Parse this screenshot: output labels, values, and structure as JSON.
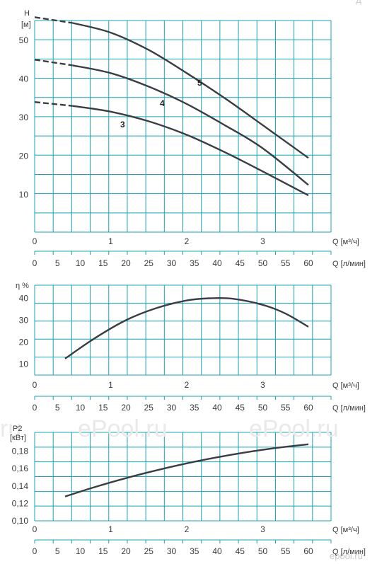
{
  "colors": {
    "grid": "#1aa3b8",
    "curve": "#3a3d42",
    "text": "#3a3a3a",
    "watermark": "#e9e9e9"
  },
  "watermark": {
    "text_left": "ePool.ru",
    "text_right": "ePool.ru",
    "corner": "epool.ru",
    "left_fragment": "ru"
  },
  "axes": {
    "q_m3h_label": "Q [м³/ч]",
    "q_lmin_label": "Q [л/мин]",
    "q_m3h_ticks": [
      "0",
      "1",
      "2",
      "3"
    ],
    "q_lmin_ticks": [
      "0",
      "5",
      "10",
      "15",
      "20",
      "25",
      "30",
      "35",
      "40",
      "45",
      "50",
      "55",
      "60"
    ]
  },
  "chart_data": [
    {
      "type": "line",
      "name": "head",
      "ylabel": "H",
      "yunit": "[м]",
      "xlim": [
        0,
        3.6
      ],
      "ylim": [
        0,
        60
      ],
      "yticks": [
        10,
        20,
        30,
        40,
        50
      ],
      "series": [
        {
          "name": "5",
          "x": [
            0,
            0.5,
            1.0,
            1.5,
            2.0,
            2.5,
            3.0,
            3.6
          ],
          "y": [
            56,
            54.5,
            52,
            47.5,
            41.5,
            35,
            28,
            19.5
          ]
        },
        {
          "name": "4",
          "x": [
            0,
            0.5,
            1.0,
            1.5,
            2.0,
            2.5,
            3.0,
            3.6
          ],
          "y": [
            45,
            43.5,
            41.5,
            38,
            33.5,
            28,
            22,
            12.5
          ]
        },
        {
          "name": "3",
          "x": [
            0,
            0.5,
            1.0,
            1.5,
            2.0,
            2.5,
            3.0,
            3.6
          ],
          "y": [
            34,
            33,
            31.5,
            29,
            25.5,
            21,
            16,
            9.8
          ]
        }
      ]
    },
    {
      "type": "line",
      "name": "efficiency",
      "ylabel": "η %",
      "xlim": [
        0,
        3.6
      ],
      "ylim": [
        5,
        47
      ],
      "yticks": [
        10,
        20,
        30,
        40
      ],
      "series": [
        {
          "name": "",
          "x": [
            0.4,
            0.8,
            1.2,
            1.6,
            2.0,
            2.3,
            2.6,
            3.0,
            3.3,
            3.6
          ],
          "y": [
            12.5,
            22,
            30,
            35.5,
            39,
            40,
            39.8,
            37,
            33,
            27
          ]
        }
      ]
    },
    {
      "type": "line",
      "name": "power",
      "ylabel": "P2",
      "yunit": "[кВт]",
      "xlim": [
        0,
        3.6
      ],
      "ylim": [
        0.1,
        0.195
      ],
      "yticks": [
        "0,10",
        "0,12",
        "0,14",
        "0,16",
        "0,18"
      ],
      "series": [
        {
          "name": "",
          "x": [
            0.4,
            0.8,
            1.2,
            1.6,
            2.0,
            2.4,
            2.8,
            3.2,
            3.6
          ],
          "y": [
            0.128,
            0.139,
            0.149,
            0.158,
            0.166,
            0.173,
            0.179,
            0.184,
            0.188
          ]
        }
      ]
    }
  ]
}
